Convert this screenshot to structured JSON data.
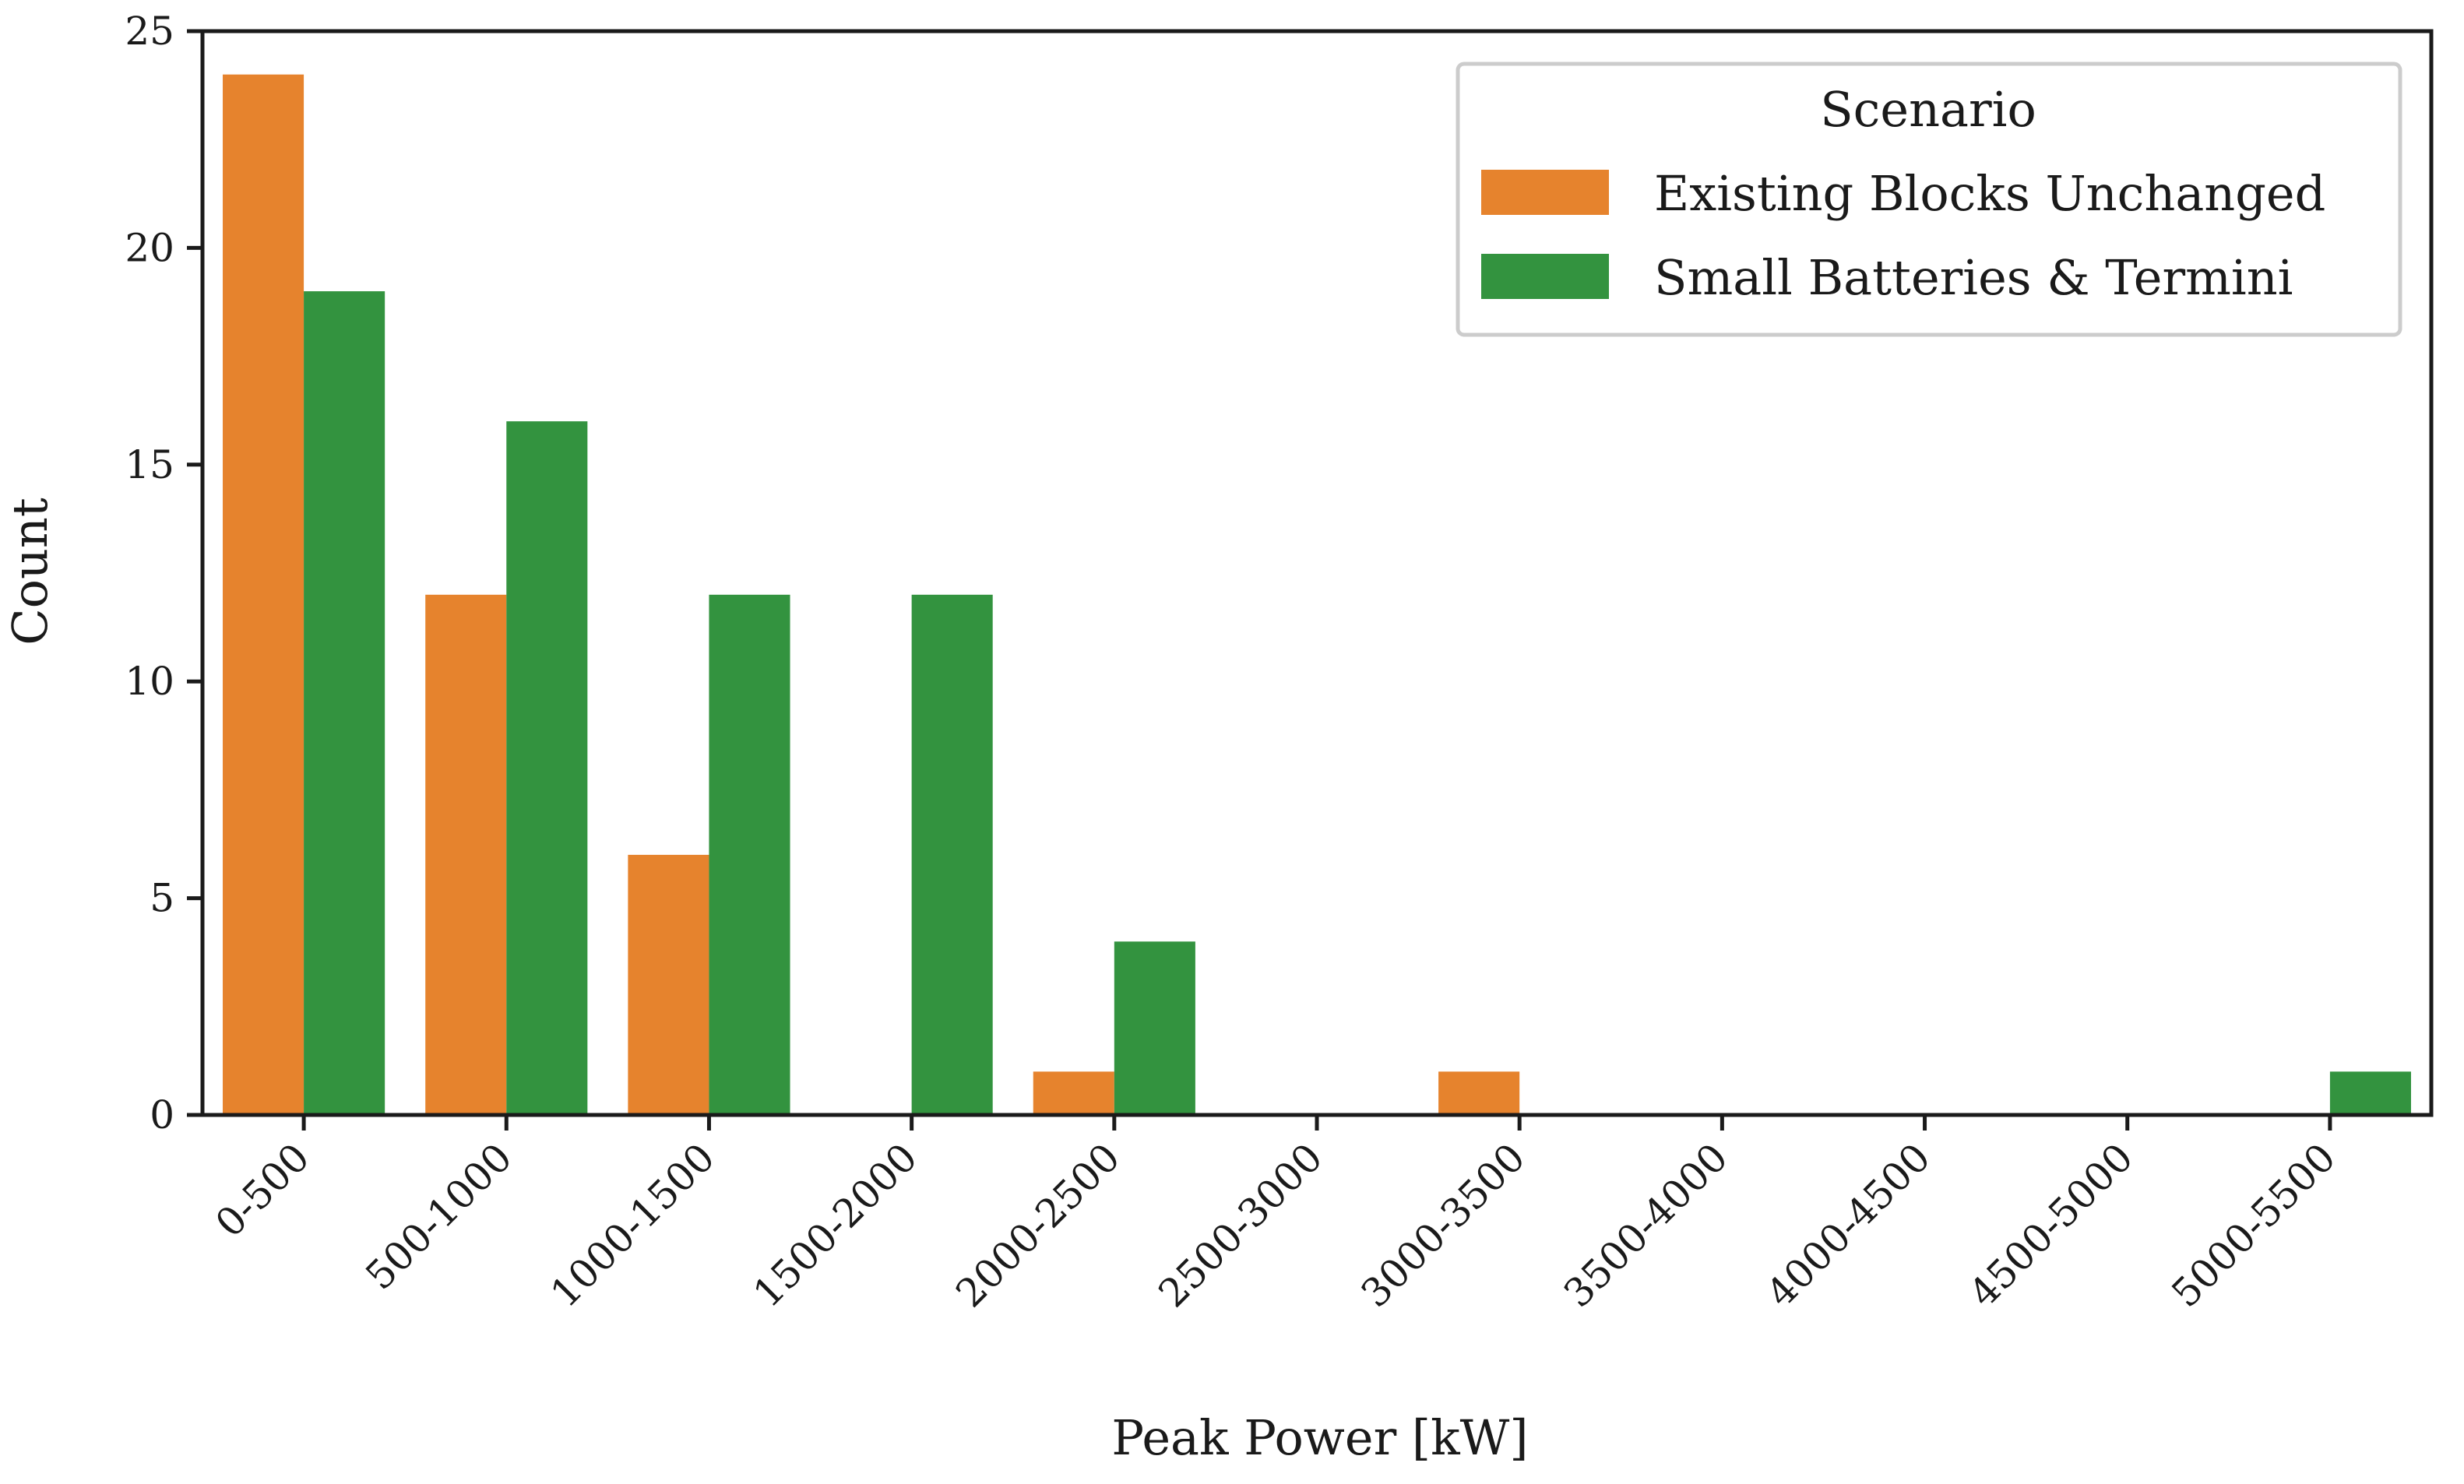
{
  "chart_data": {
    "type": "bar",
    "title": "",
    "xlabel": "Peak Power [kW]",
    "ylabel": "Count",
    "ylim": [
      0,
      25
    ],
    "yticks": [
      0,
      5,
      10,
      15,
      20,
      25
    ],
    "grid": false,
    "categories": [
      "0-500",
      "500-1000",
      "1000-1500",
      "1500-2000",
      "2000-2500",
      "2500-3000",
      "3000-3500",
      "3500-4000",
      "4000-4500",
      "4500-5000",
      "5000-5500"
    ],
    "legend": {
      "title": "Scenario",
      "position": "top-right"
    },
    "series": [
      {
        "name": "Existing Blocks Unchanged",
        "color": "#e6832d",
        "values": [
          24,
          12,
          6,
          0,
          1,
          0,
          1,
          0,
          0,
          0,
          0
        ]
      },
      {
        "name": "Small Batteries & Termini",
        "color": "#33933f",
        "values": [
          19,
          16,
          12,
          12,
          4,
          0,
          0,
          0,
          0,
          0,
          1
        ]
      }
    ]
  }
}
